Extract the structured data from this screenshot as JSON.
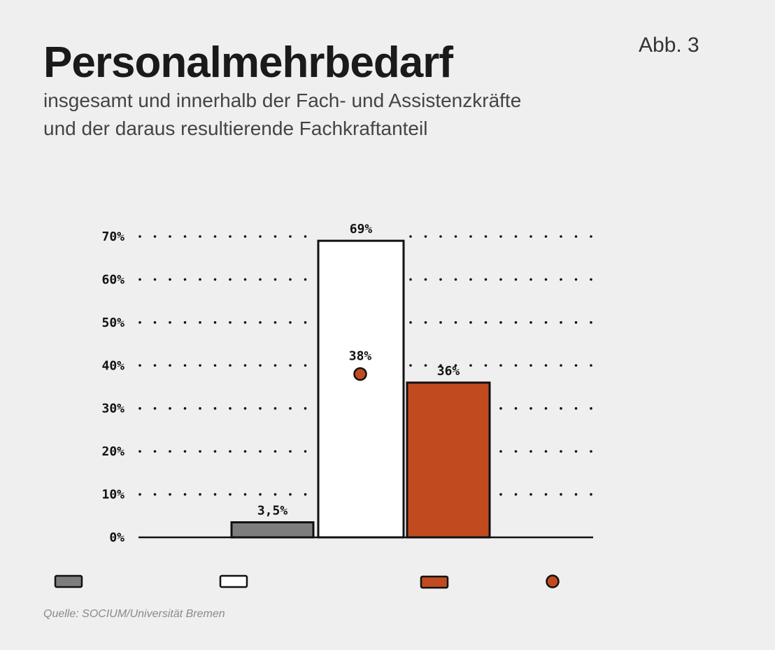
{
  "header": {
    "title": "Personalmehrbedarf",
    "subtitle_line1": "insgesamt und innerhalb der Fach- und Assistenzkräfte",
    "subtitle_line2": "und der daraus resultierende Fachkraftanteil",
    "figure_number": "Abb. 3"
  },
  "footer": {
    "source": "Quelle: SOCIUM/Universität Bremen"
  },
  "colors": {
    "grey_bar": "#7d7d7d",
    "white_bar": "#ffffff",
    "orange_bar": "#c14b1f",
    "outline": "#111111",
    "background": "#efefef"
  },
  "chart_data": {
    "type": "bar",
    "ylim": [
      0,
      70
    ],
    "y_ticks": [
      0,
      10,
      20,
      30,
      40,
      50,
      60,
      70
    ],
    "y_tick_labels": [
      "0%",
      "10%",
      "20%",
      "30%",
      "40%",
      "50%",
      "60%",
      "70%"
    ],
    "grid": "dotted horizontal",
    "bars": [
      {
        "value": 3.5,
        "label": "3,5%",
        "color": "#7d7d7d"
      },
      {
        "value": 69,
        "label": "69%",
        "color": "#ffffff"
      },
      {
        "value": 36,
        "label": "36%",
        "color": "#c14b1f"
      }
    ],
    "points": [
      {
        "value": 38,
        "label": "38%",
        "color": "#c14b1f"
      }
    ],
    "legend": {
      "placement": "bottom",
      "entries": [
        {
          "shape": "rect",
          "color": "#7d7d7d"
        },
        {
          "shape": "rect",
          "color": "#ffffff"
        },
        {
          "shape": "rect",
          "color": "#c14b1f"
        },
        {
          "shape": "circle",
          "color": "#c14b1f"
        }
      ]
    }
  }
}
